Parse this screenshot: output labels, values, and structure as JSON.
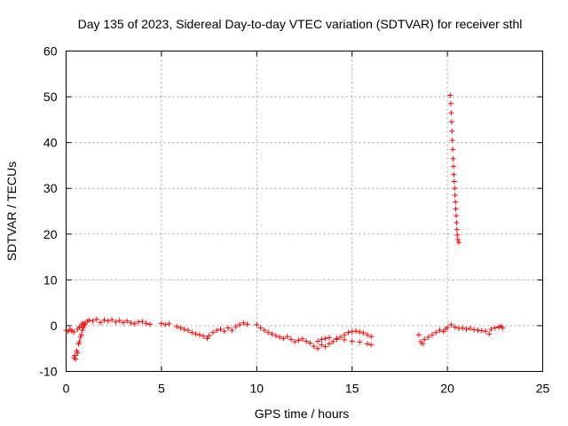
{
  "chart_data": {
    "type": "scatter",
    "title": "Day 135 of 2023, Sidereal Day-to-day VTEC variation (SDTVAR) for receiver sthl",
    "xlabel": "GPS time / hours",
    "ylabel": "SDTVAR / TECUs",
    "xlim": [
      0,
      25
    ],
    "ylim": [
      -10,
      60
    ],
    "xticks": [
      0,
      5,
      10,
      15,
      20,
      25
    ],
    "yticks": [
      -10,
      0,
      10,
      20,
      30,
      40,
      50,
      60
    ],
    "grid": true,
    "marker": "+",
    "series": [
      {
        "name": "SDTVAR",
        "color": "#ff0000",
        "points": [
          [
            0.0,
            -1.0
          ],
          [
            0.1,
            -1.3
          ],
          [
            0.2,
            -0.8
          ],
          [
            0.3,
            -1.1
          ],
          [
            0.4,
            -1.4
          ],
          [
            0.42,
            -7.0
          ],
          [
            0.45,
            -6.5
          ],
          [
            0.5,
            -7.3
          ],
          [
            0.55,
            -5.5
          ],
          [
            0.6,
            -6.0
          ],
          [
            0.65,
            -4.0
          ],
          [
            0.7,
            -3.5
          ],
          [
            0.75,
            -2.5
          ],
          [
            0.8,
            -2.0
          ],
          [
            0.85,
            -1.0
          ],
          [
            0.9,
            -0.5
          ],
          [
            0.95,
            0.0
          ],
          [
            0.6,
            -0.8
          ],
          [
            0.7,
            -0.3
          ],
          [
            0.8,
            0.2
          ],
          [
            0.9,
            0.6
          ],
          [
            1.0,
            0.4
          ],
          [
            1.1,
            0.9
          ],
          [
            1.2,
            1.2
          ],
          [
            1.4,
            1.0
          ],
          [
            1.6,
            1.4
          ],
          [
            1.8,
            0.7
          ],
          [
            2.0,
            1.2
          ],
          [
            2.2,
            1.0
          ],
          [
            2.4,
            1.3
          ],
          [
            2.6,
            0.8
          ],
          [
            2.8,
            1.1
          ],
          [
            3.0,
            0.7
          ],
          [
            3.2,
            1.0
          ],
          [
            3.4,
            0.6
          ],
          [
            3.6,
            0.4
          ],
          [
            3.8,
            0.8
          ],
          [
            4.0,
            0.9
          ],
          [
            4.2,
            0.5
          ],
          [
            4.4,
            0.3
          ],
          [
            5.0,
            0.5
          ],
          [
            5.2,
            0.2
          ],
          [
            5.4,
            0.4
          ],
          [
            5.8,
            -0.2
          ],
          [
            6.0,
            -0.5
          ],
          [
            6.2,
            -0.8
          ],
          [
            6.4,
            -1.0
          ],
          [
            6.6,
            -1.5
          ],
          [
            6.8,
            -1.8
          ],
          [
            7.0,
            -2.0
          ],
          [
            7.2,
            -2.3
          ],
          [
            7.4,
            -2.8
          ],
          [
            7.5,
            -2.2
          ],
          [
            7.7,
            -1.5
          ],
          [
            7.9,
            -1.0
          ],
          [
            8.1,
            -0.8
          ],
          [
            8.3,
            -1.2
          ],
          [
            8.5,
            -0.5
          ],
          [
            8.7,
            -1.0
          ],
          [
            8.9,
            -0.2
          ],
          [
            9.1,
            0.2
          ],
          [
            9.3,
            0.6
          ],
          [
            9.5,
            0.3
          ],
          [
            10.0,
            0.2
          ],
          [
            10.2,
            -0.5
          ],
          [
            10.4,
            -1.0
          ],
          [
            10.6,
            -1.5
          ],
          [
            10.8,
            -1.8
          ],
          [
            11.0,
            -2.2
          ],
          [
            11.2,
            -2.5
          ],
          [
            11.4,
            -2.8
          ],
          [
            11.6,
            -2.4
          ],
          [
            11.8,
            -3.0
          ],
          [
            12.0,
            -3.5
          ],
          [
            12.2,
            -3.2
          ],
          [
            12.4,
            -2.9
          ],
          [
            12.6,
            -3.4
          ],
          [
            12.8,
            -3.8
          ],
          [
            13.0,
            -4.5
          ],
          [
            13.2,
            -5.0
          ],
          [
            13.4,
            -4.2
          ],
          [
            13.6,
            -4.6
          ],
          [
            13.8,
            -4.0
          ],
          [
            14.0,
            -3.5
          ],
          [
            14.2,
            -3.0
          ],
          [
            14.4,
            -2.5
          ],
          [
            14.6,
            -2.0
          ],
          [
            14.8,
            -1.5
          ],
          [
            15.0,
            -1.3
          ],
          [
            15.2,
            -1.2
          ],
          [
            15.4,
            -1.4
          ],
          [
            15.6,
            -1.6
          ],
          [
            15.8,
            -2.0
          ],
          [
            16.0,
            -2.4
          ],
          [
            13.2,
            -3.4
          ],
          [
            13.4,
            -3.0
          ],
          [
            13.6,
            -2.8
          ],
          [
            13.8,
            -2.6
          ],
          [
            14.2,
            -2.8
          ],
          [
            14.6,
            -3.1
          ],
          [
            15.0,
            -3.4
          ],
          [
            15.4,
            -3.6
          ],
          [
            15.8,
            -4.0
          ],
          [
            16.0,
            -4.2
          ],
          [
            18.5,
            -2.0
          ],
          [
            18.6,
            -3.5
          ],
          [
            18.7,
            -4.0
          ],
          [
            18.8,
            -3.0
          ],
          [
            19.0,
            -2.5
          ],
          [
            19.2,
            -2.0
          ],
          [
            19.4,
            -1.5
          ],
          [
            19.6,
            -1.0
          ],
          [
            19.8,
            -1.3
          ],
          [
            19.9,
            -0.8
          ],
          [
            20.0,
            -0.4
          ],
          [
            20.2,
            0.2
          ],
          [
            20.4,
            -0.3
          ],
          [
            20.6,
            -0.6
          ],
          [
            20.8,
            -0.5
          ],
          [
            21.0,
            -0.8
          ],
          [
            21.2,
            -0.6
          ],
          [
            21.4,
            -0.9
          ],
          [
            21.6,
            -1.0
          ],
          [
            21.8,
            -1.1
          ],
          [
            22.0,
            -1.2
          ],
          [
            22.2,
            -1.8
          ],
          [
            22.3,
            -0.8
          ],
          [
            22.5,
            -0.5
          ],
          [
            22.7,
            -0.3
          ],
          [
            22.8,
            -0.1
          ],
          [
            22.9,
            -0.5
          ],
          [
            20.15,
            50.3
          ],
          [
            20.18,
            48.5
          ],
          [
            20.2,
            46.5
          ],
          [
            20.22,
            44.5
          ],
          [
            20.24,
            42.5
          ],
          [
            20.26,
            40.5
          ],
          [
            20.28,
            38.5
          ],
          [
            20.3,
            36.5
          ],
          [
            20.32,
            34.8
          ],
          [
            20.34,
            33.0
          ],
          [
            20.36,
            31.5
          ],
          [
            20.38,
            30.0
          ],
          [
            20.4,
            28.5
          ],
          [
            20.42,
            27.0
          ],
          [
            20.44,
            25.5
          ],
          [
            20.46,
            24.0
          ],
          [
            20.48,
            22.5
          ],
          [
            20.5,
            21.0
          ],
          [
            20.52,
            19.8
          ],
          [
            20.55,
            18.8
          ],
          [
            20.6,
            18.2
          ]
        ]
      }
    ]
  }
}
